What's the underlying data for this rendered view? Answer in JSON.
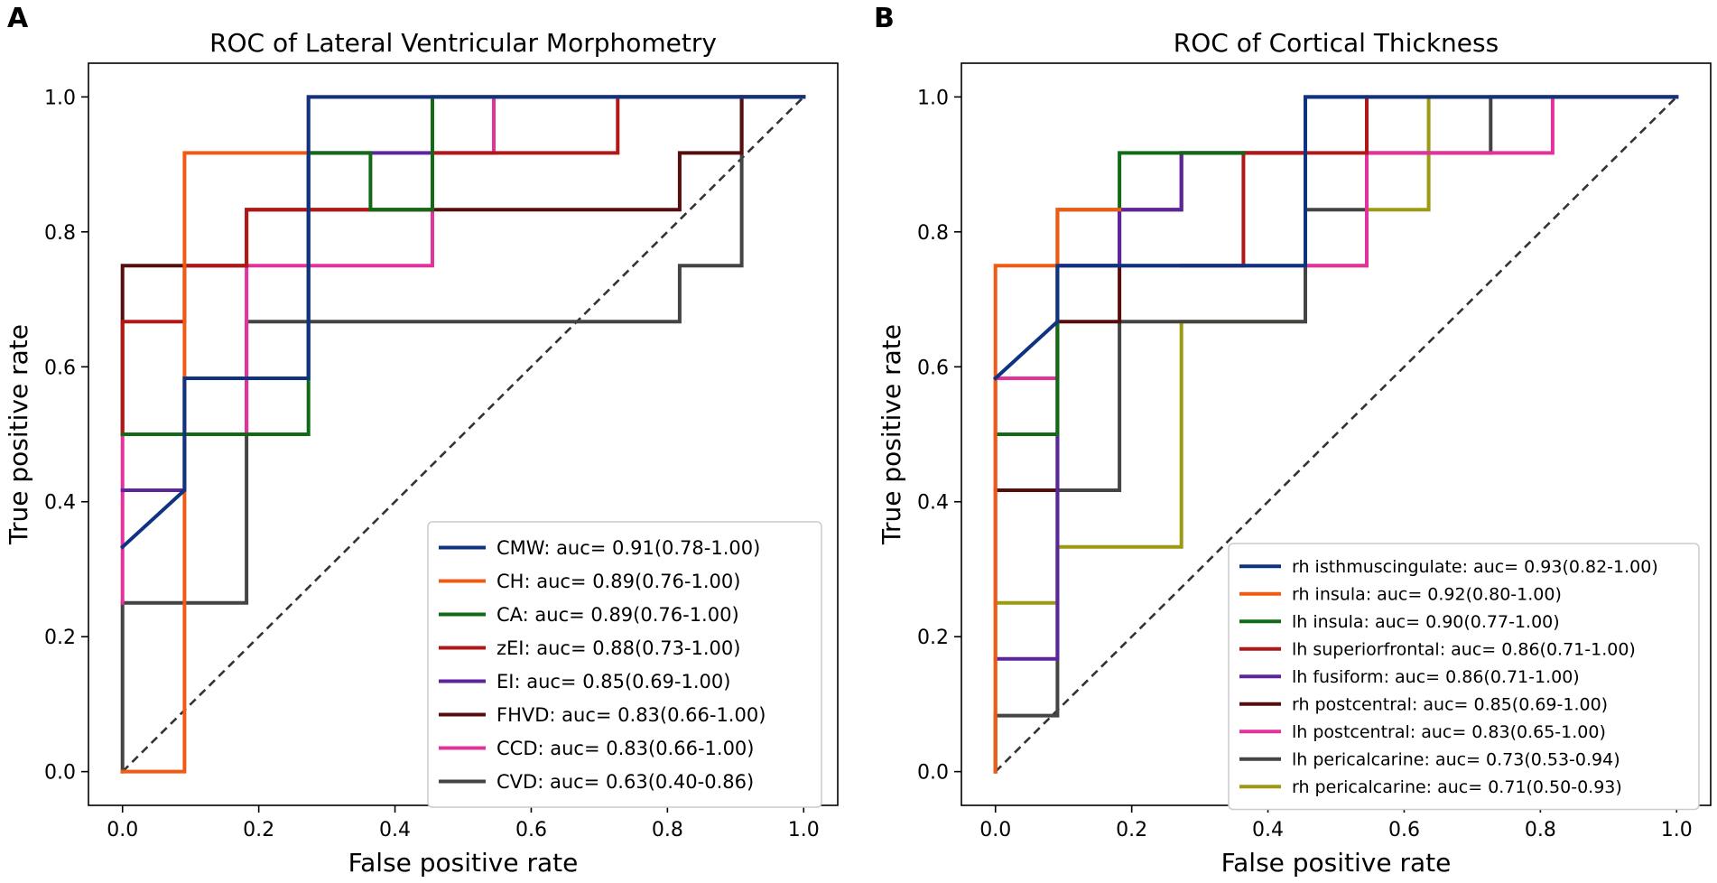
{
  "chart_data": [
    {
      "type": "line",
      "panel_label": "A",
      "title": "ROC of Lateral Ventricular Morphometry",
      "xlabel": "False positive rate",
      "ylabel": "True positive rate",
      "xlim": [
        -0.05,
        1.05
      ],
      "ylim": [
        -0.05,
        1.05
      ],
      "xticks": [
        0.0,
        0.2,
        0.4,
        0.6,
        0.8,
        1.0
      ],
      "yticks": [
        0.0,
        0.2,
        0.4,
        0.6,
        0.8,
        1.0
      ],
      "xtick_labels": [
        "0.0",
        "0.2",
        "0.4",
        "0.6",
        "0.8",
        "1.0"
      ],
      "ytick_labels": [
        "0.0",
        "0.2",
        "0.4",
        "0.6",
        "0.8",
        "1.0"
      ],
      "legend_position": "lower-right",
      "reference_line": "dashed diagonal",
      "series": [
        {
          "name": "CMW: auc= 0.91(0.78-1.00)",
          "color": "#0d3381",
          "x": [
            0,
            0.091,
            0.091,
            0.273,
            0.273,
            1.0
          ],
          "y": [
            0.333,
            0.417,
            0.583,
            0.583,
            1.0,
            1.0
          ]
        },
        {
          "name": "CH: auc= 0.89(0.76-1.00)",
          "color": "#f05a14",
          "x": [
            0,
            0.091,
            0.091,
            0.273,
            0.273,
            1.0
          ],
          "y": [
            0,
            0,
            0.917,
            0.917,
            1.0,
            1.0
          ]
        },
        {
          "name": "CA: auc= 0.89(0.76-1.00)",
          "color": "#116a16",
          "x": [
            0,
            0.273,
            0.273,
            0.364,
            0.364,
            0.455,
            0.455,
            1.0
          ],
          "y": [
            0.5,
            0.5,
            0.917,
            0.917,
            0.833,
            0.833,
            1.0,
            1.0
          ]
        },
        {
          "name": "zEI: auc= 0.88(0.73-1.00)",
          "color": "#b01818",
          "x": [
            0,
            0,
            0.091,
            0.091,
            0.182,
            0.182,
            0.455,
            0.455,
            0.727,
            0.727,
            1.0
          ],
          "y": [
            0.5,
            0.667,
            0.667,
            0.75,
            0.75,
            0.833,
            0.833,
            0.917,
            0.917,
            1.0,
            1.0
          ]
        },
        {
          "name": "EI: auc= 0.85(0.69-1.00)",
          "color": "#5c259c",
          "x": [
            0,
            0.091,
            0.091,
            0.273,
            0.273,
            0.455,
            0.455,
            1.0
          ],
          "y": [
            0.417,
            0.417,
            0.583,
            0.583,
            0.917,
            0.917,
            1.0,
            1.0
          ]
        },
        {
          "name": "FHVD: auc= 0.83(0.66-1.00)",
          "color": "#560d0d",
          "x": [
            0,
            0,
            0.182,
            0.182,
            0.818,
            0.818,
            0.909,
            0.909,
            1.0
          ],
          "y": [
            0.5,
            0.75,
            0.75,
            0.833,
            0.833,
            0.917,
            0.917,
            1.0,
            1.0
          ]
        },
        {
          "name": "CCD: auc= 0.83(0.66-1.00)",
          "color": "#e2339d",
          "x": [
            0,
            0,
            0.182,
            0.182,
            0.455,
            0.455,
            0.545,
            0.545,
            1.0
          ],
          "y": [
            0.25,
            0.5,
            0.5,
            0.75,
            0.75,
            0.917,
            0.917,
            1.0,
            1.0
          ]
        },
        {
          "name": "CVD: auc= 0.63(0.40-0.86)",
          "color": "#444444",
          "x": [
            0,
            0,
            0.182,
            0.182,
            0.818,
            0.818,
            0.909,
            0.909,
            1.0
          ],
          "y": [
            0,
            0.25,
            0.25,
            0.667,
            0.667,
            0.75,
            0.75,
            1.0,
            1.0
          ]
        }
      ]
    },
    {
      "type": "line",
      "panel_label": "B",
      "title": "ROC of Cortical Thickness",
      "xlabel": "False positive rate",
      "ylabel": "True positive rate",
      "xlim": [
        -0.05,
        1.05
      ],
      "ylim": [
        -0.05,
        1.05
      ],
      "xticks": [
        0.0,
        0.2,
        0.4,
        0.6,
        0.8,
        1.0
      ],
      "yticks": [
        0.0,
        0.2,
        0.4,
        0.6,
        0.8,
        1.0
      ],
      "xtick_labels": [
        "0.0",
        "0.2",
        "0.4",
        "0.6",
        "0.8",
        "1.0"
      ],
      "ytick_labels": [
        "0.0",
        "0.2",
        "0.4",
        "0.6",
        "0.8",
        "1.0"
      ],
      "legend_position": "lower-right",
      "reference_line": "dashed diagonal",
      "series": [
        {
          "name": "rh isthmuscingulate: auc= 0.93(0.82-1.00)",
          "color": "#0d3381",
          "x": [
            0,
            0.091,
            0.091,
            0.455,
            0.455,
            1.0
          ],
          "y": [
            0.583,
            0.667,
            0.75,
            0.75,
            1.0,
            1.0
          ]
        },
        {
          "name": "rh insula: auc= 0.92(0.80-1.00)",
          "color": "#f05a14",
          "x": [
            0,
            0,
            0.091,
            0.091,
            0.182
          ],
          "y": [
            0,
            0.75,
            0.75,
            0.833,
            0.833
          ]
        },
        {
          "name": "lh insula: auc= 0.90(0.77-1.00)",
          "color": "#116a16",
          "x": [
            0,
            0.091,
            0.091,
            0.182,
            0.182,
            0.364
          ],
          "y": [
            0.5,
            0.5,
            0.833,
            0.833,
            0.917,
            0.917
          ]
        },
        {
          "name": "lh superiorfrontal: auc= 0.86(0.71-1.00)",
          "color": "#b01818",
          "x": [
            0.273,
            0.364,
            0.364,
            0.545,
            0.545,
            1.0
          ],
          "y": [
            0.75,
            0.75,
            0.917,
            0.917,
            1.0,
            1.0
          ]
        },
        {
          "name": "lh fusiform: auc= 0.86(0.71-1.00)",
          "color": "#5c259c",
          "x": [
            0,
            0.091,
            0.091,
            0.182,
            0.182,
            0.273,
            0.273,
            0.455,
            0.455,
            0.545
          ],
          "y": [
            0.167,
            0.167,
            0.75,
            0.75,
            0.833,
            0.833,
            0.917,
            0.917,
            1.0,
            1.0
          ]
        },
        {
          "name": "rh postcentral: auc= 0.85(0.69-1.00)",
          "color": "#560d0d",
          "x": [
            0,
            0.091,
            0.091,
            0.182,
            0.182,
            0.273,
            0.273,
            0.364,
            0.364,
            0.455
          ],
          "y": [
            0.417,
            0.417,
            0.667,
            0.667,
            0.833,
            0.833,
            0.917,
            0.917,
            0.917,
            0.917
          ]
        },
        {
          "name": "lh postcentral: auc= 0.83(0.65-1.00)",
          "color": "#e2339d",
          "x": [
            0,
            0,
            0.091,
            0.091,
            0.545,
            0.545,
            0.818,
            0.818,
            1.0
          ],
          "y": [
            0.25,
            0.583,
            0.583,
            0.75,
            0.75,
            0.917,
            0.917,
            1.0,
            1.0
          ]
        },
        {
          "name": "lh pericalcarine: auc= 0.73(0.53-0.94)",
          "color": "#444444",
          "x": [
            0,
            0,
            0.091,
            0.091,
            0.182,
            0.182,
            0.455,
            0.455,
            0.545,
            0.545,
            0.727,
            0.727,
            1.0
          ],
          "y": [
            0,
            0.083,
            0.083,
            0.417,
            0.417,
            0.667,
            0.667,
            0.833,
            0.833,
            0.917,
            0.917,
            1.0,
            1.0
          ]
        },
        {
          "name": "rh pericalcarine: auc= 0.71(0.50-0.93)",
          "color": "#9d9a12",
          "x": [
            0,
            0,
            0.091,
            0.091,
            0.273,
            0.273,
            0.455,
            0.455,
            0.545,
            0.545,
            0.636,
            0.636,
            1.0
          ],
          "y": [
            0,
            0.25,
            0.25,
            0.333,
            0.333,
            0.667,
            0.667,
            0.75,
            0.75,
            0.833,
            0.833,
            1.0,
            1.0
          ]
        }
      ]
    }
  ]
}
